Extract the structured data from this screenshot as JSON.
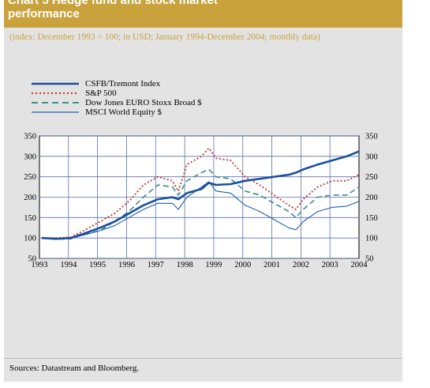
{
  "header": {
    "title_line1": "Chart 5 Hedge fund and stock market",
    "title_line2": "performance",
    "subtitle": "(index: December 1993 = 100; in USD; January 1994-December 2004; monthly data)"
  },
  "legend": [
    {
      "label": "CSFB/Tremont Index",
      "color": "#1b4f9c",
      "style": "solid-thick"
    },
    {
      "label": "S&P 500",
      "color": "#c0392b",
      "style": "dotted"
    },
    {
      "label": "Dow Jones EURO Stoxx Broad $",
      "color": "#3a8f8a",
      "style": "dashed"
    },
    {
      "label": "MSCI World Equity $",
      "color": "#1f5fb0",
      "style": "solid-thin"
    }
  ],
  "sources": "Sources: Datastream and Bloomberg.",
  "chart_data": {
    "type": "line",
    "x_tick_labels": [
      "1993",
      "1994",
      "1995",
      "1996",
      "1997",
      "1998",
      "1999",
      "2000",
      "2001",
      "2002",
      "2003",
      "2004"
    ],
    "y_tick_labels": [
      "50",
      "100",
      "150",
      "200",
      "250",
      "300",
      "350"
    ],
    "ylim": [
      50,
      350
    ],
    "xlim": [
      1993.92,
      2004.92
    ],
    "grid": true,
    "legend_position": "top-left",
    "x": [
      1994.0,
      1994.5,
      1995.0,
      1995.5,
      1996.0,
      1996.5,
      1997.0,
      1997.5,
      1998.0,
      1998.5,
      1998.7,
      1999.0,
      1999.5,
      1999.75,
      2000.0,
      2000.5,
      2001.0,
      2001.5,
      2002.0,
      2002.5,
      2002.75,
      2003.0,
      2003.5,
      2004.0,
      2004.5,
      2004.92
    ],
    "series": [
      {
        "name": "CSFB/Tremont Index",
        "color": "#1b4f9c",
        "values": [
          100,
          98,
          100,
          112,
          125,
          140,
          160,
          180,
          195,
          200,
          195,
          210,
          220,
          235,
          230,
          232,
          240,
          245,
          250,
          255,
          260,
          268,
          280,
          290,
          300,
          312
        ]
      },
      {
        "name": "S&P 500",
        "color": "#c0392b",
        "values": [
          100,
          100,
          102,
          120,
          140,
          160,
          190,
          230,
          250,
          240,
          215,
          280,
          300,
          320,
          295,
          290,
          250,
          230,
          205,
          180,
          170,
          195,
          225,
          240,
          240,
          255
        ]
      },
      {
        "name": "Dow Jones EURO Stoxx Broad $",
        "color": "#3a8f8a",
        "values": [
          100,
          97,
          98,
          110,
          118,
          140,
          165,
          200,
          230,
          225,
          205,
          240,
          260,
          268,
          250,
          245,
          215,
          205,
          185,
          165,
          150,
          170,
          200,
          205,
          205,
          225
        ]
      },
      {
        "name": "MSCI World Equity $",
        "color": "#1f5fb0",
        "values": [
          100,
          97,
          100,
          108,
          118,
          130,
          150,
          170,
          185,
          185,
          170,
          200,
          225,
          238,
          215,
          210,
          180,
          165,
          145,
          125,
          120,
          140,
          165,
          175,
          178,
          190
        ]
      }
    ]
  }
}
